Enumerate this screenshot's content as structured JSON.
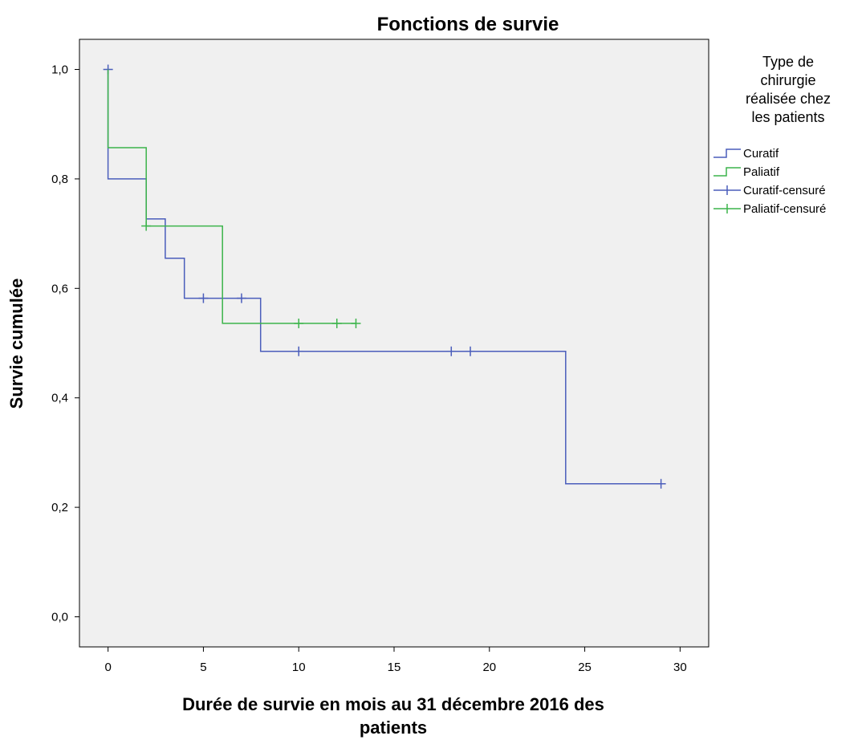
{
  "chart_data": {
    "type": "line",
    "title": "Fonctions de survie",
    "xlabel_lines": [
      "Durée de survie en mois au 31 décembre 2016 des",
      "patients"
    ],
    "ylabel": "Survie cumulée",
    "xlim": [
      -1.5,
      31.5
    ],
    "ylim": [
      -0.055,
      1.055
    ],
    "x_ticks": [
      0,
      5,
      10,
      15,
      20,
      25,
      30
    ],
    "x_tick_labels": [
      "0",
      "5",
      "10",
      "15",
      "20",
      "25",
      "30"
    ],
    "y_ticks": [
      0.0,
      0.2,
      0.4,
      0.6,
      0.8,
      1.0
    ],
    "y_tick_labels": [
      "0,0",
      "0,2",
      "0,4",
      "0,6",
      "0,8",
      "1,0"
    ],
    "grid": false,
    "plot_background": "#f0f0f0",
    "legend": {
      "position": "right",
      "title_lines": [
        "Type de",
        "chirurgie",
        "réalisée chez",
        "les patients"
      ],
      "entries": [
        {
          "label": "Curatif",
          "kind": "step",
          "color": "#4a5dbb"
        },
        {
          "label": "Paliatif",
          "kind": "step",
          "color": "#3cb44b"
        },
        {
          "label": "Curatif-censuré",
          "kind": "censor",
          "color": "#4a5dbb"
        },
        {
          "label": "Paliatif-censuré",
          "kind": "censor",
          "color": "#3cb44b"
        }
      ]
    },
    "series": [
      {
        "name": "Curatif",
        "color": "#4a5dbb",
        "steps": [
          [
            0,
            1.0
          ],
          [
            0,
            0.8
          ],
          [
            2,
            0.8
          ],
          [
            2,
            0.727
          ],
          [
            3,
            0.727
          ],
          [
            3,
            0.655
          ],
          [
            4,
            0.655
          ],
          [
            4,
            0.582
          ],
          [
            8,
            0.582
          ],
          [
            8,
            0.485
          ],
          [
            24,
            0.485
          ],
          [
            24,
            0.243
          ],
          [
            29,
            0.243
          ]
        ],
        "censored": [
          [
            0,
            1.0
          ],
          [
            5,
            0.582
          ],
          [
            7,
            0.582
          ],
          [
            10,
            0.485
          ],
          [
            18,
            0.485
          ],
          [
            19,
            0.485
          ],
          [
            29,
            0.243
          ]
        ]
      },
      {
        "name": "Paliatif",
        "color": "#3cb44b",
        "steps": [
          [
            0,
            1.0
          ],
          [
            0,
            0.857
          ],
          [
            2,
            0.857
          ],
          [
            2,
            0.714
          ],
          [
            6,
            0.714
          ],
          [
            6,
            0.536
          ],
          [
            13,
            0.536
          ]
        ],
        "censored": [
          [
            2,
            0.714
          ],
          [
            10,
            0.536
          ],
          [
            12,
            0.536
          ],
          [
            13,
            0.536
          ]
        ]
      }
    ]
  }
}
